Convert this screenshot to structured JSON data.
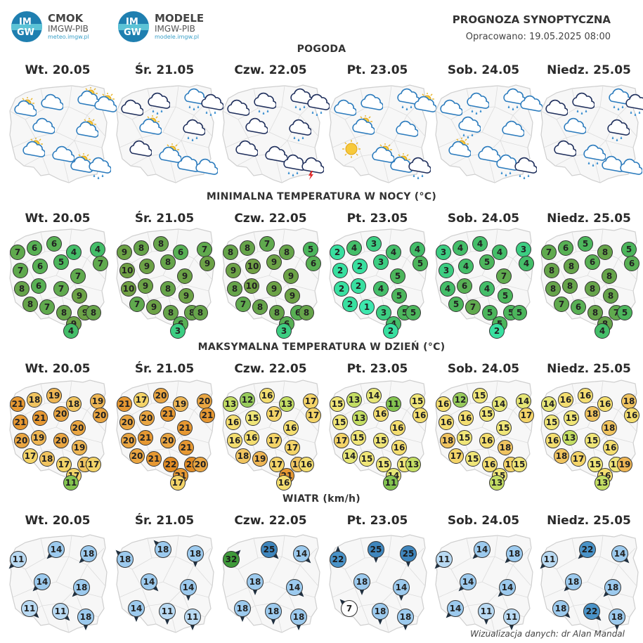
{
  "header": {
    "logo1": {
      "badge_top": "IM",
      "badge_bottom": "GW",
      "name": "CMOK",
      "sub": "IMGW-PIB",
      "url": "meteo.imgw.pl"
    },
    "logo2": {
      "badge_top": "IM",
      "badge_bottom": "GW",
      "name": "MODELE",
      "sub": "IMGW-PIB",
      "url": "modele.imgw.pl"
    },
    "title": "PROGNOZA SYNOPTYCZNA",
    "prepared": "Opracowano: 19.05.2025 08:00"
  },
  "days": [
    "Wt. 20.05",
    "Śr. 21.05",
    "Czw. 22.05",
    "Pt. 23.05",
    "Sob. 24.05",
    "Niedz. 25.05"
  ],
  "sections": {
    "weather": "POGODA",
    "tmin": "MINIMALNA TEMPERATURA W NOCY (°C)",
    "tmax": "MAKSYMALNA TEMPERATURA W DZIEŃ (°C)",
    "wind": "WIATR (km/h)"
  },
  "weather_icons": [
    [
      "partly-cloudy-icon",
      "cloud-icon",
      "partly-cloudy-icon",
      "partly-cloudy-icon",
      "cloud-icon",
      "partly-cloudy-icon",
      "partly-cloudy-icon",
      "cloud-icon",
      "partly-cloudy-icon",
      "rain-cloud-icon"
    ],
    [
      "dark-cloud-icon",
      "dark-rain-cloud-icon",
      "rain-cloud-icon",
      "dark-rain-cloud-icon",
      "partly-cloudy-icon",
      "dark-rain-cloud-icon",
      "dark-cloud-icon",
      "partly-cloudy-icon",
      "cloud-icon",
      "cloud-icon"
    ],
    [
      "dark-cloud-icon",
      "dark-rain-cloud-icon",
      "dark-rain-cloud-icon",
      "dark-rain-cloud-icon",
      "dark-cloud-icon",
      "dark-rain-cloud-icon",
      "dark-cloud-icon",
      "dark-cloud-icon",
      "dark-rain-cloud-icon",
      "storm-cloud-icon"
    ],
    [
      "cloud-icon",
      "cloud-icon",
      "rain-cloud-icon",
      "partly-cloudy-icon",
      "partly-cloudy-icon",
      "cloud-icon",
      "sun-icon",
      "partly-cloudy-icon",
      "partly-cloudy-icon",
      "dark-rain-cloud-icon"
    ],
    [
      "cloud-icon",
      "rain-cloud-icon",
      "rain-cloud-icon",
      "cloud-icon",
      "rain-cloud-icon",
      "cloud-icon",
      "partly-cloudy-icon",
      "cloud-icon",
      "rain-cloud-icon",
      "dark-rain-cloud-icon"
    ],
    [
      "dark-cloud-icon",
      "dark-rain-cloud-icon",
      "rain-cloud-icon",
      "dark-rain-cloud-icon",
      "cloud-icon",
      "dark-rain-cloud-icon",
      "dark-cloud-icon",
      "rain-cloud-icon",
      "cloud-icon",
      "cloud-icon"
    ]
  ],
  "tmin": [
    [
      7,
      6,
      6,
      4,
      4,
      7,
      7,
      6,
      5,
      7,
      8,
      6,
      7,
      9,
      8,
      7,
      8,
      9,
      9,
      8,
      4
    ],
    [
      9,
      8,
      8,
      6,
      7,
      9,
      10,
      9,
      8,
      9,
      10,
      9,
      8,
      9,
      7,
      9,
      8,
      8,
      6,
      8,
      3
    ],
    [
      8,
      8,
      7,
      8,
      5,
      6,
      9,
      10,
      9,
      9,
      8,
      10,
      9,
      9,
      7,
      8,
      8,
      6,
      6,
      8,
      3
    ],
    [
      2,
      4,
      3,
      4,
      4,
      5,
      2,
      2,
      3,
      5,
      2,
      2,
      4,
      5,
      2,
      1,
      3,
      5,
      4,
      5,
      2
    ],
    [
      3,
      4,
      4,
      4,
      3,
      4,
      3,
      4,
      5,
      7,
      4,
      6,
      4,
      5,
      5,
      7,
      5,
      5,
      5,
      5,
      2
    ],
    [
      7,
      6,
      5,
      8,
      5,
      6,
      8,
      8,
      6,
      8,
      8,
      8,
      8,
      8,
      7,
      6,
      8,
      7,
      8,
      5,
      4
    ]
  ],
  "tmax": [
    [
      21,
      18,
      19,
      18,
      19,
      20,
      21,
      21,
      20,
      20,
      20,
      19,
      20,
      19,
      17,
      18,
      17,
      18,
      17,
      17,
      11
    ],
    [
      21,
      17,
      20,
      19,
      20,
      21,
      20,
      20,
      21,
      21,
      20,
      21,
      20,
      21,
      20,
      21,
      22,
      22,
      21,
      20,
      17
    ],
    [
      13,
      12,
      16,
      13,
      17,
      17,
      16,
      15,
      17,
      16,
      16,
      16,
      17,
      17,
      18,
      19,
      17,
      18,
      21,
      16,
      16
    ],
    [
      15,
      13,
      14,
      11,
      15,
      16,
      15,
      13,
      16,
      16,
      17,
      15,
      15,
      16,
      14,
      15,
      15,
      15,
      14,
      13,
      11
    ],
    [
      16,
      12,
      15,
      14,
      14,
      17,
      16,
      16,
      15,
      15,
      18,
      15,
      16,
      18,
      17,
      15,
      16,
      17,
      15,
      15,
      13
    ],
    [
      14,
      16,
      16,
      16,
      18,
      16,
      15,
      15,
      18,
      18,
      16,
      13,
      15,
      16,
      18,
      17,
      15,
      15,
      16,
      19,
      13
    ]
  ],
  "wind": [
    [
      11,
      14,
      18,
      14,
      18,
      11,
      11,
      18
    ],
    [
      18,
      18,
      18,
      14,
      14,
      14,
      11,
      11
    ],
    [
      32,
      25,
      14,
      18,
      14,
      18,
      18,
      18
    ],
    [
      22,
      25,
      25,
      18,
      14,
      7,
      18,
      18
    ],
    [
      11,
      14,
      18,
      14,
      14,
      14,
      11,
      11
    ],
    [
      11,
      22,
      14,
      18,
      18,
      18,
      22,
      18
    ]
  ],
  "wind_dirs": [
    [
      135,
      135,
      135,
      135,
      135,
      45,
      45,
      90
    ],
    [
      225,
      225,
      90,
      45,
      90,
      90,
      90,
      90
    ],
    [
      315,
      45,
      45,
      90,
      45,
      90,
      90,
      90
    ],
    [
      270,
      90,
      90,
      90,
      90,
      225,
      90,
      90
    ],
    [
      135,
      135,
      135,
      135,
      135,
      135,
      90,
      90
    ],
    [
      135,
      135,
      45,
      135,
      135,
      45,
      45,
      90
    ]
  ],
  "colors": {
    "wind_palette": {
      "7": "#ffffff",
      "11": "#b9daf3",
      "14": "#9ccaee",
      "18": "#9ccaee",
      "22": "#4a93c8",
      "25": "#3f86bd",
      "32": "#3f9a3a"
    },
    "map_fill": "#f7f7f7",
    "map_border": "#cfcfcf"
  },
  "credit": "Wizualizacja danych: dr Alan Mandal"
}
